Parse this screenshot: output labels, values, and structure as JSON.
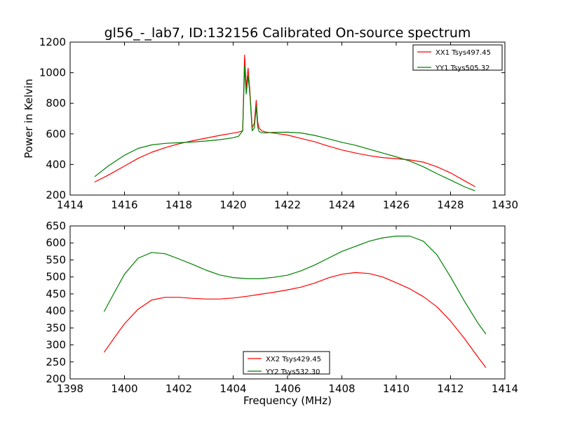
{
  "figure": {
    "title": "gl56_-_lab7, ID:132156 Calibrated On-source spectrum"
  },
  "chart_data": [
    {
      "type": "line",
      "title": "gl56_-_lab7, ID:132156 Calibrated On-source spectrum",
      "xlabel": "",
      "ylabel": "Power in Kelvin",
      "xlim": [
        1414,
        1430
      ],
      "ylim": [
        200,
        1200
      ],
      "xticks": [
        1414,
        1416,
        1418,
        1420,
        1422,
        1424,
        1426,
        1428,
        1430
      ],
      "yticks": [
        200,
        400,
        600,
        800,
        1000,
        1200
      ],
      "grid": false,
      "legend_position": "top-right",
      "series": [
        {
          "name": "XX1 Tsys497.45",
          "color": "#ff0000",
          "x": [
            1414.9,
            1415.4,
            1416.0,
            1416.5,
            1417.0,
            1417.5,
            1418.0,
            1418.5,
            1419.0,
            1419.5,
            1420.0,
            1420.2,
            1420.35,
            1420.42,
            1420.48,
            1420.55,
            1420.62,
            1420.7,
            1420.78,
            1420.85,
            1420.9,
            1420.95,
            1421.05,
            1421.2,
            1421.5,
            1422.0,
            1422.5,
            1423.0,
            1423.5,
            1424.0,
            1424.5,
            1425.0,
            1425.5,
            1426.0,
            1426.5,
            1427.0,
            1427.5,
            1428.0,
            1428.5,
            1428.9
          ],
          "y": [
            285,
            330,
            390,
            440,
            480,
            510,
            535,
            555,
            572,
            590,
            605,
            612,
            620,
            1115,
            900,
            1030,
            870,
            640,
            670,
            820,
            680,
            640,
            620,
            612,
            605,
            592,
            570,
            548,
            520,
            495,
            475,
            458,
            445,
            438,
            430,
            415,
            385,
            345,
            295,
            255
          ]
        },
        {
          "name": "YY1 Tsys505.32",
          "color": "#008000",
          "x": [
            1414.9,
            1415.4,
            1416.0,
            1416.5,
            1417.0,
            1417.5,
            1418.0,
            1418.5,
            1419.0,
            1419.5,
            1420.0,
            1420.2,
            1420.35,
            1420.42,
            1420.48,
            1420.55,
            1420.62,
            1420.7,
            1420.78,
            1420.85,
            1420.9,
            1420.95,
            1421.05,
            1421.2,
            1421.5,
            1422.0,
            1422.5,
            1423.0,
            1423.5,
            1424.0,
            1424.5,
            1425.0,
            1425.5,
            1426.0,
            1426.5,
            1427.0,
            1427.5,
            1428.0,
            1428.5,
            1428.9
          ],
          "y": [
            320,
            390,
            460,
            505,
            528,
            538,
            542,
            547,
            553,
            562,
            575,
            585,
            620,
            1045,
            860,
            980,
            850,
            620,
            640,
            780,
            650,
            615,
            608,
            607,
            610,
            611,
            606,
            590,
            568,
            545,
            525,
            500,
            475,
            450,
            422,
            385,
            340,
            298,
            255,
            228
          ]
        }
      ]
    },
    {
      "type": "line",
      "title": "",
      "xlabel": "Frequency (MHz)",
      "ylabel": "",
      "xlim": [
        1398,
        1414
      ],
      "ylim": [
        200,
        650
      ],
      "xticks": [
        1398,
        1400,
        1402,
        1404,
        1406,
        1408,
        1410,
        1412,
        1414
      ],
      "yticks": [
        200,
        250,
        300,
        350,
        400,
        450,
        500,
        550,
        600,
        650
      ],
      "grid": false,
      "legend_position": "bottom-center",
      "series": [
        {
          "name": "XX2 Tsys429.45",
          "color": "#ff0000",
          "x": [
            1399.25,
            1399.6,
            1400.0,
            1400.5,
            1401.0,
            1401.5,
            1402.0,
            1402.5,
            1403.0,
            1403.5,
            1404.0,
            1404.5,
            1405.0,
            1405.5,
            1406.0,
            1406.5,
            1407.0,
            1407.5,
            1408.0,
            1408.5,
            1409.0,
            1409.5,
            1410.0,
            1410.5,
            1411.0,
            1411.5,
            1412.0,
            1412.5,
            1413.0,
            1413.3
          ],
          "y": [
            278,
            318,
            362,
            405,
            432,
            440,
            440,
            437,
            435,
            435,
            438,
            443,
            449,
            455,
            462,
            470,
            482,
            497,
            508,
            513,
            510,
            500,
            483,
            465,
            442,
            412,
            370,
            320,
            265,
            233
          ]
        },
        {
          "name": "YY2 Tsys532.30",
          "color": "#008000",
          "x": [
            1399.25,
            1399.6,
            1400.0,
            1400.5,
            1401.0,
            1401.5,
            1402.0,
            1402.5,
            1403.0,
            1403.5,
            1404.0,
            1404.5,
            1405.0,
            1405.5,
            1406.0,
            1406.5,
            1407.0,
            1407.5,
            1408.0,
            1408.5,
            1409.0,
            1409.5,
            1410.0,
            1410.5,
            1411.0,
            1411.5,
            1412.0,
            1412.5,
            1413.0,
            1413.3
          ],
          "y": [
            398,
            450,
            508,
            555,
            572,
            568,
            553,
            537,
            520,
            506,
            498,
            495,
            495,
            499,
            505,
            518,
            535,
            555,
            575,
            590,
            605,
            615,
            620,
            620,
            605,
            565,
            500,
            430,
            365,
            332
          ]
        }
      ]
    }
  ]
}
